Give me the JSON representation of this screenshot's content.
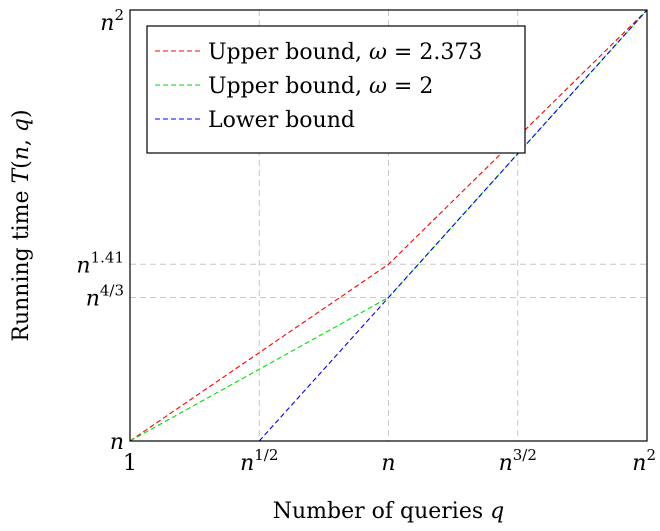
{
  "chart_data": {
    "type": "line",
    "xlabel": "Number of queries q",
    "ylabel": "Running time T(n, q)",
    "x_scale": "log_n exponent",
    "y_scale": "log_n exponent",
    "xlim": [
      0,
      2
    ],
    "ylim": [
      1,
      2
    ],
    "x_ticks": [
      {
        "value": 0,
        "base": "1",
        "exp": ""
      },
      {
        "value": 0.5,
        "base": "n",
        "exp": "1/2"
      },
      {
        "value": 1,
        "base": "n",
        "exp": ""
      },
      {
        "value": 1.5,
        "base": "n",
        "exp": "3/2"
      },
      {
        "value": 2,
        "base": "n",
        "exp": "2"
      }
    ],
    "y_ticks": [
      {
        "value": 1,
        "base": "n",
        "exp": ""
      },
      {
        "value": 1.333,
        "base": "n",
        "exp": "4/3"
      },
      {
        "value": 1.41,
        "base": "n",
        "exp": "1.41"
      },
      {
        "value": 2,
        "base": "n",
        "exp": "2"
      }
    ],
    "grid": true,
    "legend_position": "top-left",
    "series": [
      {
        "name": "Upper bound, ω = 2.373",
        "color": "#ff0000",
        "dash": "dashed",
        "points": [
          [
            0,
            1
          ],
          [
            1,
            1.41
          ],
          [
            2,
            2
          ]
        ]
      },
      {
        "name": "Upper bound, ω = 2",
        "color": "#00e000",
        "dash": "dashed",
        "points": [
          [
            0,
            1
          ],
          [
            1,
            1.333
          ],
          [
            2,
            2
          ]
        ]
      },
      {
        "name": "Lower bound",
        "color": "#0000ff",
        "dash": "dashed",
        "points": [
          [
            0.5,
            1
          ],
          [
            1,
            1.333
          ],
          [
            2,
            2
          ]
        ]
      }
    ]
  }
}
